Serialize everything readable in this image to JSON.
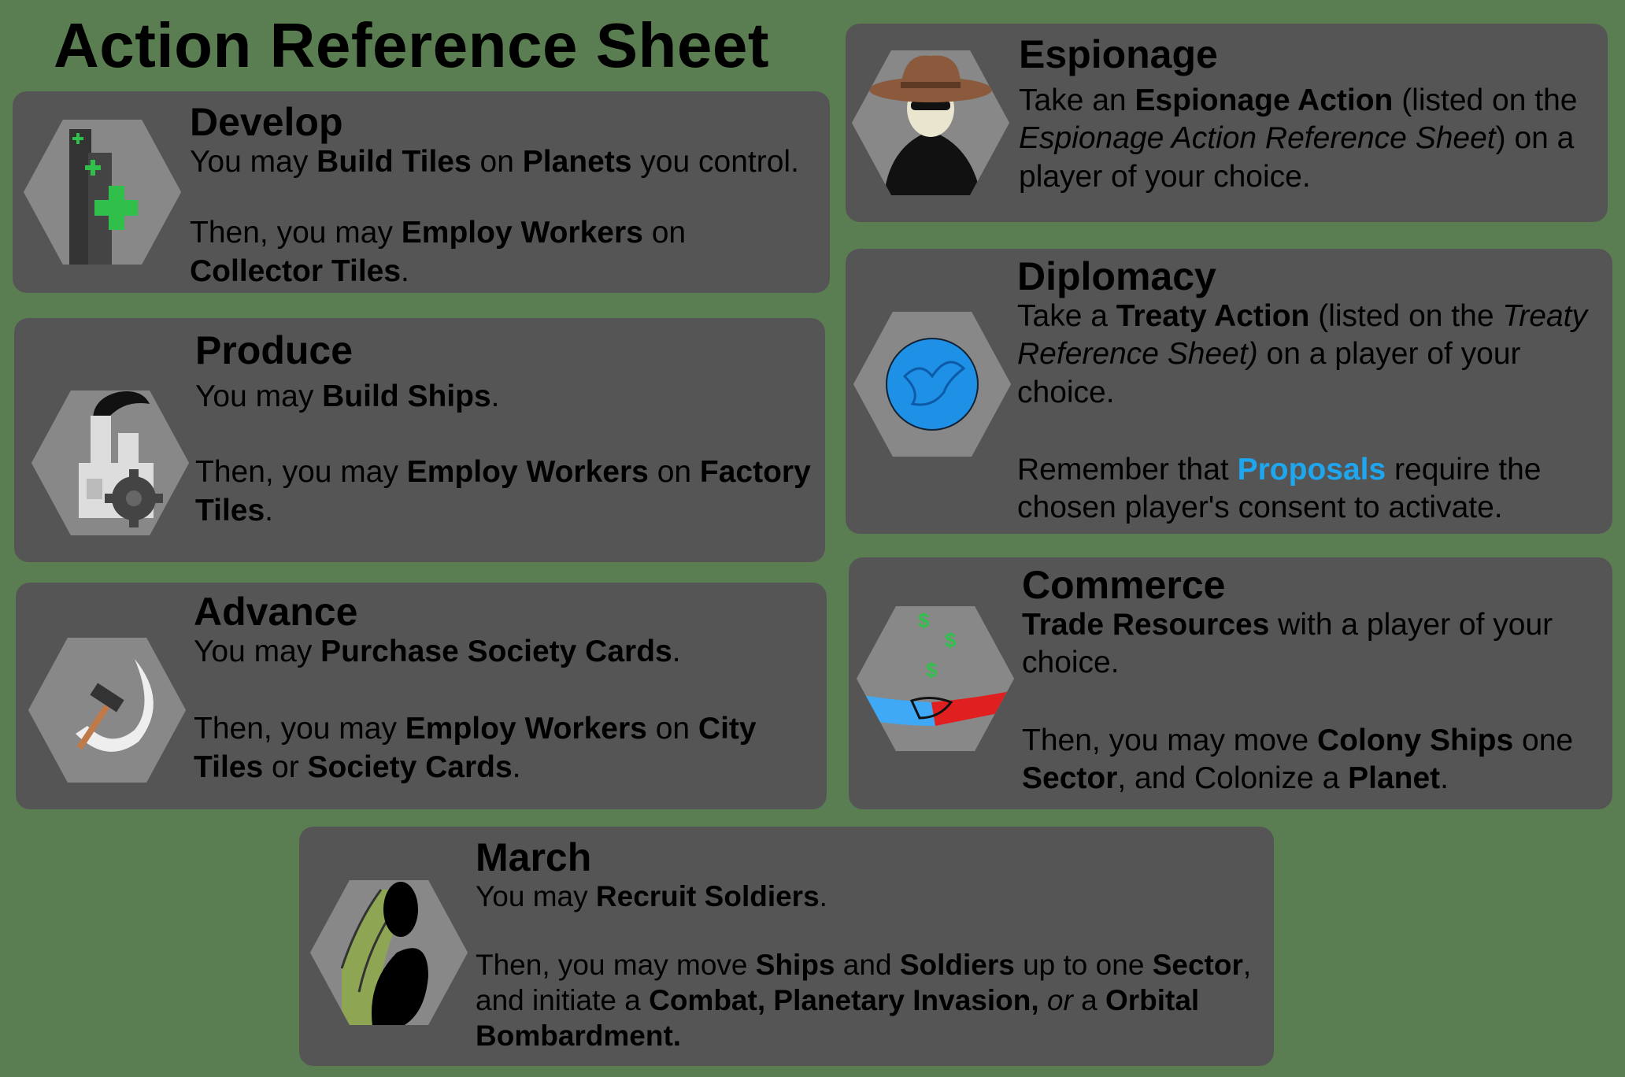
{
  "title": "Action Reference Sheet",
  "cards": {
    "develop": {
      "name": "Develop",
      "icon": "tower-build-icon",
      "p1": [
        "You may ",
        "Build Tiles",
        " on ",
        "Planets",
        " you control."
      ],
      "p2": [
        "Then, you may ",
        "Employ Workers",
        " on ",
        "Collector Tiles",
        "."
      ]
    },
    "produce": {
      "name": "Produce",
      "icon": "factory-gear-icon",
      "p1": [
        "You may ",
        "Build Ships",
        "."
      ],
      "p2": [
        "Then, you may ",
        "Employ Workers",
        " on ",
        "Factory Tiles",
        "."
      ]
    },
    "advance": {
      "name": "Advance",
      "icon": "hammer-sickle-icon",
      "p1": [
        "You may ",
        "Purchase Society Cards",
        "."
      ],
      "p2": [
        "Then, you may ",
        "Employ Workers",
        " on ",
        "City Tiles",
        " or ",
        "Society Cards",
        "."
      ]
    },
    "espionage": {
      "name": "Espionage",
      "icon": "spy-icon",
      "p1": [
        "Take an ",
        "Espionage Action",
        " (listed on the ",
        "Espionage Action Reference Sheet",
        ") on a player of your choice."
      ]
    },
    "diplomacy": {
      "name": "Diplomacy",
      "icon": "dove-icon",
      "p1": [
        "Take a ",
        "Treaty Action",
        " (listed on the ",
        "Treaty Reference Sheet)",
        " on a player of your choice."
      ],
      "p2": [
        "Remember that ",
        "Proposals",
        " require the chosen player's consent to activate."
      ]
    },
    "commerce": {
      "name": "Commerce",
      "icon": "handshake-money-icon",
      "p1": [
        "Trade Resources",
        " with a player of your choice."
      ],
      "p2": [
        "Then, you may move ",
        "Colony Ships",
        " one ",
        "Sector",
        ", and Colonize ",
        "a ",
        "Planet",
        "."
      ]
    },
    "march": {
      "name": "March",
      "icon": "boot-march-icon",
      "p1": [
        "You may ",
        "Recruit Soldiers",
        "."
      ],
      "p2": [
        "Then, you may move ",
        "Ships",
        " and ",
        "Soldiers",
        " up to one ",
        "Sector",
        ", and initiate a ",
        "Combat, Planetary Invasion,",
        " or",
        " a ",
        "Orbital Bombardment."
      ]
    }
  },
  "colors": {
    "background": "#5a7d52",
    "card": "#555555",
    "hex": "#888888",
    "accent_blue": "#1ea7ee"
  }
}
